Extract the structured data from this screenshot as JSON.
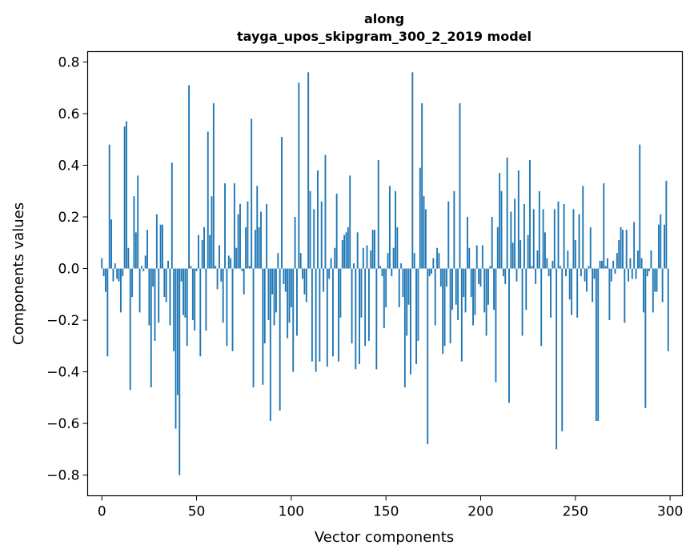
{
  "chart_data": {
    "type": "bar",
    "title_lines": [
      "along",
      "tayga_upos_skipgram_300_2_2019 model"
    ],
    "xlabel": "Vector components",
    "ylabel": "Components values",
    "xlim": [
      -7.5,
      306.5
    ],
    "ylim": [
      -0.88,
      0.84
    ],
    "x_ticks": [
      0,
      50,
      100,
      150,
      200,
      250,
      300
    ],
    "x_tick_labels": [
      "0",
      "50",
      "100",
      "150",
      "200",
      "250",
      "300"
    ],
    "y_ticks": [
      -0.8,
      -0.6,
      -0.4,
      -0.2,
      0.0,
      0.2,
      0.4,
      0.6,
      0.8
    ],
    "y_tick_labels": [
      "−0.8",
      "−0.6",
      "−0.4",
      "−0.2",
      "0.0",
      "0.2",
      "0.4",
      "0.6",
      "0.8"
    ],
    "bar_color": "#1f77b4",
    "values": [
      0.04,
      -0.03,
      -0.09,
      -0.34,
      0.48,
      0.19,
      -0.05,
      0.02,
      -0.04,
      -0.05,
      -0.17,
      -0.03,
      0.55,
      0.57,
      0.08,
      -0.47,
      -0.11,
      0.28,
      0.14,
      0.36,
      -0.17,
      0.01,
      -0.01,
      0.05,
      0.15,
      -0.22,
      -0.46,
      -0.07,
      -0.28,
      0.21,
      -0.21,
      0.17,
      0.17,
      -0.11,
      -0.13,
      0.03,
      -0.22,
      0.41,
      -0.32,
      -0.62,
      -0.49,
      -0.8,
      -0.05,
      -0.18,
      -0.19,
      -0.3,
      0.71,
      0.01,
      -0.2,
      -0.24,
      -0.01,
      0.13,
      -0.34,
      0.11,
      0.16,
      -0.24,
      0.53,
      0.13,
      0.28,
      0.64,
      0.01,
      -0.08,
      0.09,
      -0.05,
      -0.21,
      0.33,
      -0.3,
      0.05,
      0.04,
      -0.32,
      0.33,
      0.08,
      0.21,
      0.25,
      -0.01,
      -0.1,
      0.16,
      0.26,
      0.01,
      0.58,
      -0.46,
      0.15,
      0.32,
      0.16,
      0.22,
      -0.45,
      -0.29,
      0.25,
      -0.2,
      -0.59,
      -0.1,
      -0.22,
      -0.17,
      0.06,
      -0.55,
      0.51,
      -0.06,
      -0.09,
      -0.27,
      -0.21,
      -0.15,
      -0.4,
      0.2,
      -0.26,
      0.72,
      0.06,
      -0.04,
      -0.1,
      -0.13,
      0.76,
      0.3,
      -0.36,
      0.23,
      -0.4,
      0.38,
      -0.36,
      0.26,
      -0.09,
      0.44,
      -0.38,
      -0.04,
      0.04,
      -0.34,
      0.08,
      0.29,
      -0.36,
      -0.19,
      0.11,
      0.13,
      0.14,
      0.16,
      0.36,
      -0.29,
      0.02,
      -0.39,
      0.14,
      -0.37,
      -0.19,
      0.08,
      -0.3,
      0.09,
      -0.28,
      0.07,
      0.15,
      0.15,
      -0.39,
      0.42,
      0.01,
      -0.03,
      -0.23,
      -0.15,
      0.06,
      0.32,
      -0.03,
      0.08,
      0.3,
      0.16,
      -0.15,
      0.02,
      -0.11,
      -0.46,
      -0.26,
      -0.14,
      -0.41,
      0.76,
      0.06,
      -0.37,
      -0.28,
      0.39,
      0.64,
      0.28,
      0.23,
      -0.68,
      -0.03,
      -0.02,
      0.04,
      -0.22,
      0.08,
      0.06,
      -0.07,
      -0.33,
      -0.3,
      -0.07,
      0.26,
      -0.29,
      -0.16,
      0.3,
      -0.14,
      -0.2,
      0.64,
      -0.36,
      -0.11,
      -0.17,
      0.2,
      0.08,
      -0.11,
      -0.22,
      -0.18,
      0.09,
      -0.06,
      -0.07,
      0.09,
      -0.17,
      -0.26,
      -0.14,
      0.01,
      0.2,
      -0.16,
      -0.44,
      0.16,
      0.37,
      0.3,
      -0.03,
      -0.06,
      0.43,
      -0.52,
      0.22,
      0.1,
      0.27,
      -0.05,
      0.38,
      0.11,
      -0.26,
      0.25,
      -0.16,
      0.13,
      0.42,
      0.01,
      0.23,
      -0.06,
      0.07,
      0.3,
      -0.3,
      0.23,
      0.14,
      0.04,
      -0.03,
      -0.19,
      0.03,
      0.23,
      -0.7,
      0.26,
      0.01,
      -0.63,
      0.25,
      -0.03,
      0.07,
      -0.12,
      -0.18,
      0.23,
      0.11,
      -0.19,
      0.21,
      -0.03,
      0.32,
      -0.05,
      -0.09,
      0.01,
      0.16,
      -0.13,
      -0.04,
      -0.59,
      -0.59,
      0.03,
      0.03,
      0.33,
      0.01,
      0.04,
      -0.2,
      -0.05,
      0.03,
      -0.02,
      0.06,
      0.11,
      0.16,
      0.15,
      -0.21,
      0.15,
      -0.05,
      0.04,
      -0.04,
      0.18,
      -0.04,
      0.07,
      0.48,
      0.04,
      -0.17,
      -0.54,
      -0.03,
      -0.01,
      0.07,
      -0.17,
      -0.09,
      -0.09,
      0.17,
      0.21,
      -0.13,
      0.17,
      0.34,
      -0.32
    ]
  }
}
